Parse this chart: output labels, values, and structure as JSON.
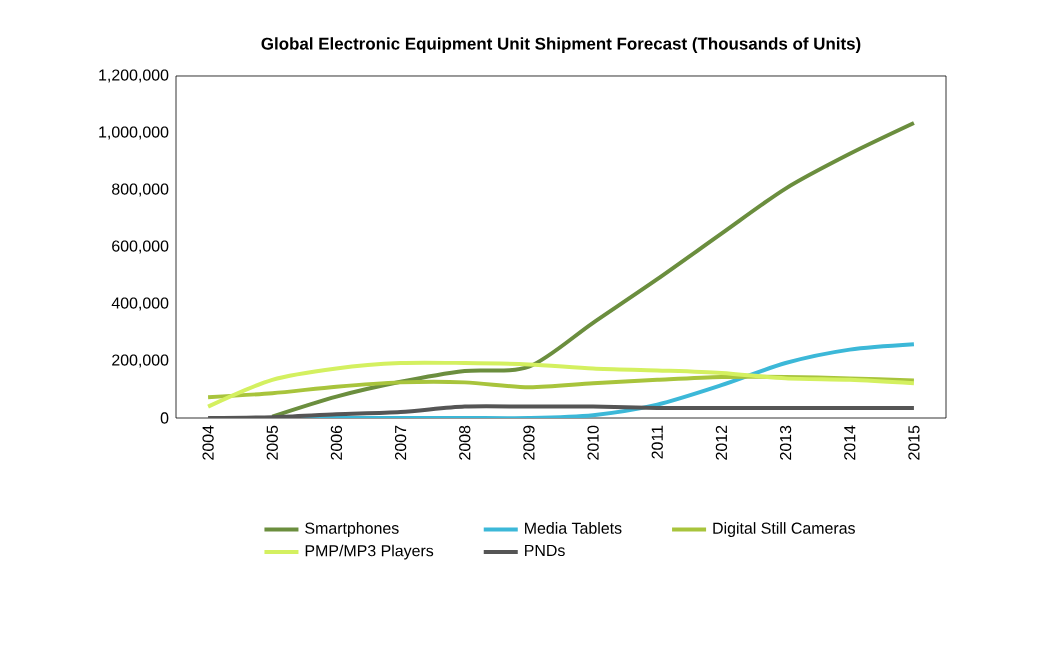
{
  "chart_data": {
    "type": "line",
    "title": "Global Electronic Equipment Unit Shipment Forecast (Thousands of Units)",
    "categories": [
      "2004",
      "2005",
      "2006",
      "2007",
      "2008",
      "2009",
      "2010",
      "2011",
      "2012",
      "2013",
      "2014",
      "2015"
    ],
    "series": [
      {
        "name": "Smartphones",
        "color": "#6b8e3e",
        "values": [
          null,
          5000,
          75000,
          127000,
          165000,
          180000,
          334000,
          487000,
          647000,
          805000,
          927000,
          1035000
        ]
      },
      {
        "name": "Media Tablets",
        "color": "#3cb8d8",
        "values": [
          null,
          0,
          0,
          0,
          0,
          0,
          10000,
          47000,
          115000,
          193000,
          240000,
          259000
        ]
      },
      {
        "name": "Digital Still Cameras",
        "color": "#a8c43c",
        "values": [
          73000,
          87000,
          110000,
          125000,
          125000,
          108000,
          122000,
          134000,
          144000,
          144000,
          139000,
          132000
        ]
      },
      {
        "name": "PMP/MP3 Players",
        "color": "#d4f060",
        "values": [
          40000,
          134000,
          174000,
          193000,
          193000,
          188000,
          174000,
          167000,
          158000,
          139000,
          134000,
          122000
        ]
      },
      {
        "name": "PNDs",
        "color": "#555555",
        "values": [
          0,
          3000,
          13000,
          21000,
          40000,
          40000,
          40000,
          35000,
          35000,
          35000,
          35000,
          35000
        ]
      }
    ],
    "ylim": [
      0,
      1200000
    ],
    "yticks": [
      0,
      {
        "value": 200000,
        "label": "200,000"
      },
      {
        "value": 400000,
        "label": "400,000"
      },
      {
        "value": 600000,
        "label": "600,000"
      },
      {
        "value": 800000,
        "label": "800,000"
      },
      {
        "value": 1000000,
        "label": "1,000,000"
      },
      {
        "value": 1200000,
        "label": "1,200,000"
      }
    ],
    "grid": false,
    "legend": "bottom",
    "marker": "none",
    "line_style": "solid"
  }
}
